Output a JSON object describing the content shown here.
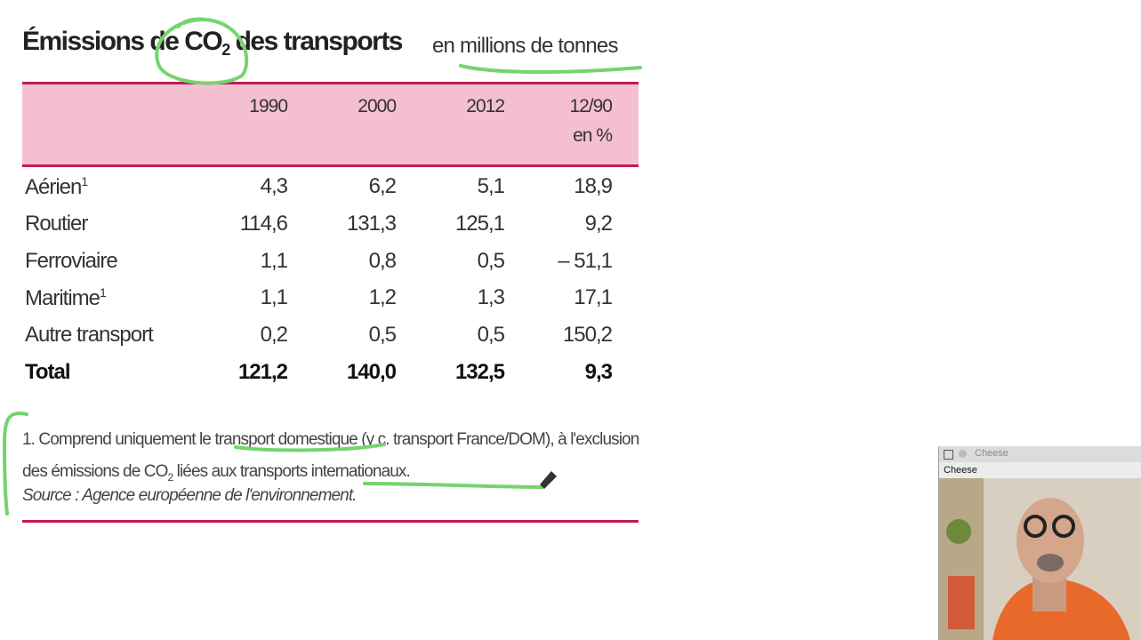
{
  "title": {
    "text": "Émissions de CO",
    "sub": "2",
    "rest": " des transports"
  },
  "unit": "en millions de tonnes",
  "table": {
    "years": [
      "1990",
      "2000",
      "2012"
    ],
    "change": [
      "12/90",
      "en %"
    ],
    "rows": [
      {
        "label": "Aérien",
        "note": "1",
        "values": [
          "4,3",
          "6,2",
          "5,1",
          "18,9"
        ]
      },
      {
        "label": "Routier",
        "values": [
          "114,6",
          "131,3",
          "125,1",
          "9,2"
        ]
      },
      {
        "label": "Ferroviaire",
        "values": [
          "1,1",
          "0,8",
          "0,5",
          "– 51,1"
        ]
      },
      {
        "label": "Maritime",
        "note": "1",
        "values": [
          "1,1",
          "1,2",
          "1,3",
          "17,1"
        ]
      },
      {
        "label": "Autre transport",
        "values": [
          "0,2",
          "0,5",
          "0,5",
          "150,2"
        ]
      }
    ],
    "total": {
      "label": "Total",
      "values": [
        "121,2",
        "140,0",
        "132,5",
        "9,3"
      ]
    }
  },
  "footnote": {
    "text1": "1. Comprend uniquement le transport domestique (y c. transport France/DOM), à l'exclusion des émissions de CO",
    "sub": "2",
    "text2": " liées aux transports internationaux."
  },
  "source": "Source : Agence européenne de l'environnement.",
  "window": {
    "title": "Cheese",
    "menu": "Cheese"
  }
}
